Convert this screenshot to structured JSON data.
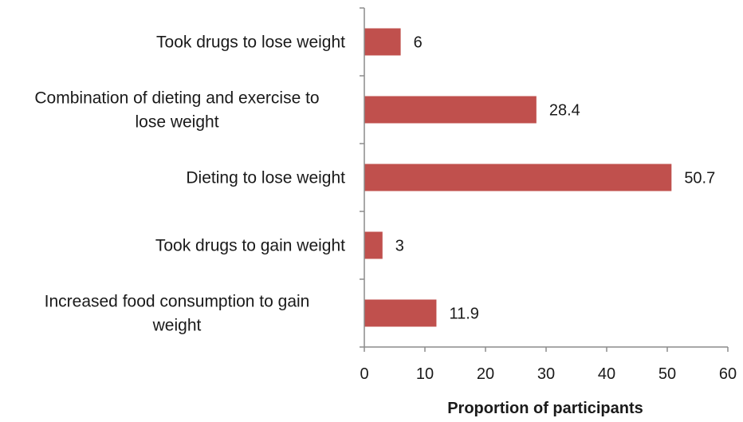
{
  "chart_data": {
    "type": "bar",
    "orientation": "horizontal",
    "categories": [
      "Took drugs to lose weight",
      "Combination of dieting and exercise to lose weight",
      "Dieting to lose weight",
      "Took drugs to gain weight",
      "Increased food consumption to gain weight"
    ],
    "category_lines": [
      [
        "Took drugs to lose weight"
      ],
      [
        "Combination of dieting and exercise to",
        "lose weight"
      ],
      [
        "Dieting to lose weight"
      ],
      [
        "Took drugs to gain weight"
      ],
      [
        "Increased food consumption to gain",
        "weight"
      ]
    ],
    "values": [
      6,
      28.4,
      50.7,
      3,
      11.9
    ],
    "data_labels": [
      "6",
      "28.4",
      "50.7",
      "3",
      "11.9"
    ],
    "xlabel": "Proportion of participants",
    "ylabel": "",
    "title": "",
    "xlim": [
      0,
      60
    ],
    "x_ticks": [
      0,
      10,
      20,
      30,
      40,
      50,
      60
    ],
    "grid": false,
    "legend": "none",
    "bar_color": "#c0504d",
    "axis_color": "#8c8c8c",
    "text_color": "#1a1a1a"
  }
}
